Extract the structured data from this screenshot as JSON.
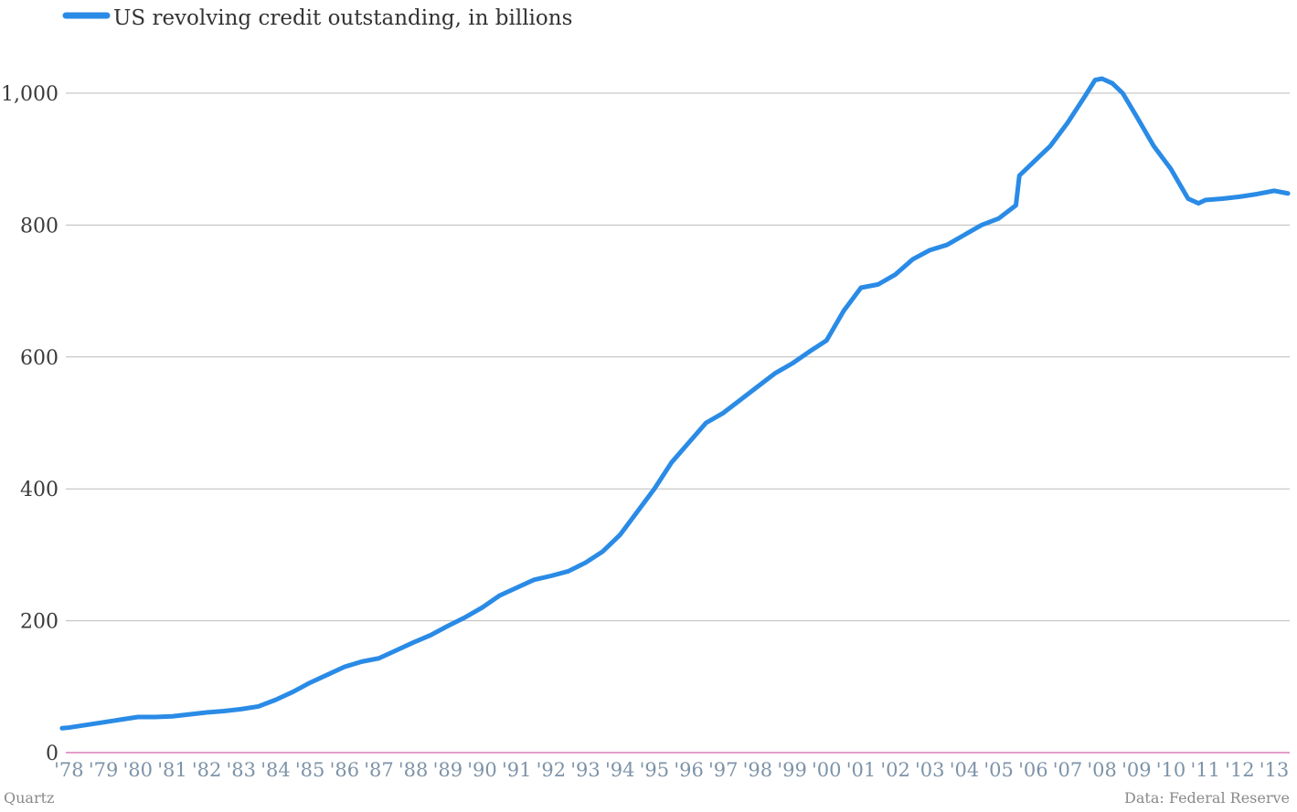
{
  "colors": {
    "series": "#2a8be6",
    "grid": "#bbbbbb",
    "baseline": "#c83c96"
  },
  "footer": {
    "source": "Quartz",
    "credit": "Data: Federal Reserve"
  },
  "chart_data": {
    "type": "line",
    "legend_position": "top-left",
    "grid": true,
    "xlim": [
      1977.75,
      2013.45
    ],
    "ylim": [
      0,
      1000
    ],
    "y_ticks": [
      {
        "value": 0,
        "label": "0"
      },
      {
        "value": 200,
        "label": "200"
      },
      {
        "value": 400,
        "label": "400"
      },
      {
        "value": 600,
        "label": "600"
      },
      {
        "value": 800,
        "label": "800"
      },
      {
        "value": 1000,
        "label": "1,000"
      }
    ],
    "x_ticks": [
      {
        "value": 1978,
        "label": "'78"
      },
      {
        "value": 1979,
        "label": "'79"
      },
      {
        "value": 1980,
        "label": "'80"
      },
      {
        "value": 1981,
        "label": "'81"
      },
      {
        "value": 1982,
        "label": "'82"
      },
      {
        "value": 1983,
        "label": "'83"
      },
      {
        "value": 1984,
        "label": "'84"
      },
      {
        "value": 1985,
        "label": "'85"
      },
      {
        "value": 1986,
        "label": "'86"
      },
      {
        "value": 1987,
        "label": "'87"
      },
      {
        "value": 1988,
        "label": "'88"
      },
      {
        "value": 1989,
        "label": "'89"
      },
      {
        "value": 1990,
        "label": "'90"
      },
      {
        "value": 1991,
        "label": "'91"
      },
      {
        "value": 1992,
        "label": "'92"
      },
      {
        "value": 1993,
        "label": "'93"
      },
      {
        "value": 1994,
        "label": "'94"
      },
      {
        "value": 1995,
        "label": "'95"
      },
      {
        "value": 1996,
        "label": "'96"
      },
      {
        "value": 1997,
        "label": "'97"
      },
      {
        "value": 1998,
        "label": "'98"
      },
      {
        "value": 1999,
        "label": "'99"
      },
      {
        "value": 2000,
        "label": "'00"
      },
      {
        "value": 2001,
        "label": "'01"
      },
      {
        "value": 2002,
        "label": "'02"
      },
      {
        "value": 2003,
        "label": "'03"
      },
      {
        "value": 2004,
        "label": "'04"
      },
      {
        "value": 2005,
        "label": "'05"
      },
      {
        "value": 2006,
        "label": "'06"
      },
      {
        "value": 2007,
        "label": "'07"
      },
      {
        "value": 2008,
        "label": "'08"
      },
      {
        "value": 2009,
        "label": "'09"
      },
      {
        "value": 2010,
        "label": "'10"
      },
      {
        "value": 2011,
        "label": "'11"
      },
      {
        "value": 2012,
        "label": "'12"
      },
      {
        "value": 2013,
        "label": "'13"
      }
    ],
    "series": [
      {
        "name": "US revolving credit outstanding, in billions",
        "points": [
          [
            1977.8,
            37
          ],
          [
            1978.0,
            38
          ],
          [
            1978.5,
            42
          ],
          [
            1979.0,
            46
          ],
          [
            1979.5,
            50
          ],
          [
            1980.0,
            54
          ],
          [
            1980.5,
            54
          ],
          [
            1981.0,
            55
          ],
          [
            1981.5,
            58
          ],
          [
            1982.0,
            61
          ],
          [
            1982.5,
            63
          ],
          [
            1983.0,
            66
          ],
          [
            1983.5,
            70
          ],
          [
            1984.0,
            80
          ],
          [
            1984.5,
            92
          ],
          [
            1985.0,
            106
          ],
          [
            1985.5,
            118
          ],
          [
            1986.0,
            130
          ],
          [
            1986.5,
            138
          ],
          [
            1987.0,
            143
          ],
          [
            1987.5,
            155
          ],
          [
            1988.0,
            167
          ],
          [
            1988.5,
            178
          ],
          [
            1989.0,
            192
          ],
          [
            1989.5,
            205
          ],
          [
            1990.0,
            220
          ],
          [
            1990.5,
            238
          ],
          [
            1991.0,
            250
          ],
          [
            1991.5,
            262
          ],
          [
            1992.0,
            268
          ],
          [
            1992.5,
            275
          ],
          [
            1993.0,
            288
          ],
          [
            1993.5,
            305
          ],
          [
            1994.0,
            330
          ],
          [
            1994.5,
            365
          ],
          [
            1995.0,
            400
          ],
          [
            1995.5,
            440
          ],
          [
            1996.0,
            470
          ],
          [
            1996.5,
            500
          ],
          [
            1997.0,
            515
          ],
          [
            1997.5,
            535
          ],
          [
            1998.0,
            555
          ],
          [
            1998.5,
            575
          ],
          [
            1999.0,
            590
          ],
          [
            1999.5,
            608
          ],
          [
            2000.0,
            625
          ],
          [
            2000.5,
            670
          ],
          [
            2001.0,
            705
          ],
          [
            2001.5,
            710
          ],
          [
            2002.0,
            725
          ],
          [
            2002.5,
            748
          ],
          [
            2003.0,
            762
          ],
          [
            2003.5,
            770
          ],
          [
            2004.0,
            785
          ],
          [
            2004.5,
            800
          ],
          [
            2005.0,
            810
          ],
          [
            2005.5,
            830
          ],
          [
            2005.6,
            875
          ],
          [
            2006.0,
            895
          ],
          [
            2006.5,
            920
          ],
          [
            2007.0,
            955
          ],
          [
            2007.5,
            995
          ],
          [
            2007.8,
            1020
          ],
          [
            2008.0,
            1022
          ],
          [
            2008.3,
            1015
          ],
          [
            2008.6,
            1000
          ],
          [
            2009.0,
            965
          ],
          [
            2009.5,
            920
          ],
          [
            2010.0,
            885
          ],
          [
            2010.5,
            840
          ],
          [
            2010.8,
            833
          ],
          [
            2011.0,
            838
          ],
          [
            2011.5,
            840
          ],
          [
            2012.0,
            843
          ],
          [
            2012.5,
            847
          ],
          [
            2013.0,
            852
          ],
          [
            2013.4,
            848
          ]
        ]
      }
    ]
  }
}
